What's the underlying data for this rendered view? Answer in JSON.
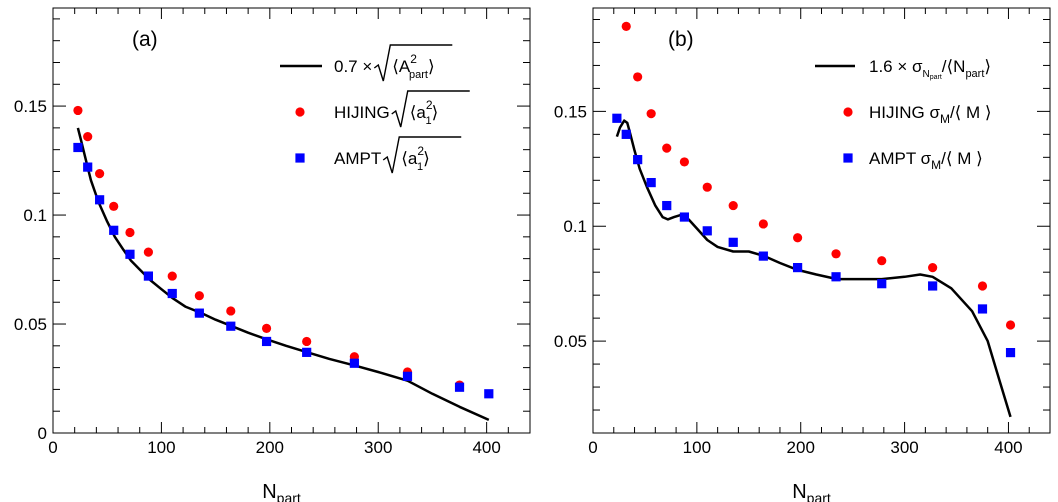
{
  "chart_data": [
    {
      "type": "line",
      "panel_label": "(a)",
      "xlabel": "N",
      "xlabel_sub": "part",
      "xlim": [
        0,
        440
      ],
      "ylim": [
        0,
        0.195
      ],
      "x_ticks": [
        0,
        100,
        200,
        300,
        400
      ],
      "y_ticks": [
        0,
        0.05,
        0.1,
        0.15
      ],
      "x_tick_labels": [
        "0",
        "100",
        "200",
        "300",
        "400"
      ],
      "y_tick_labels": [
        "0",
        "0.05",
        "0.1",
        "0.15"
      ],
      "series": [
        {
          "label": "0.7 ×",
          "label_expr": "⟨A",
          "label_sup": "2",
          "label_sub": "part",
          "label_end": "⟩",
          "kind": "line",
          "color": "#000000",
          "x": [
            23,
            26,
            30,
            35,
            42,
            50,
            57,
            65,
            72,
            80,
            90,
            100,
            110,
            122,
            137,
            150,
            165,
            180,
            197,
            215,
            235,
            255,
            278,
            300,
            327,
            350,
            375,
            402
          ],
          "y": [
            0.14,
            0.134,
            0.126,
            0.116,
            0.106,
            0.097,
            0.09,
            0.084,
            0.079,
            0.075,
            0.07,
            0.066,
            0.062,
            0.058,
            0.055,
            0.052,
            0.049,
            0.046,
            0.043,
            0.04,
            0.037,
            0.034,
            0.031,
            0.028,
            0.024,
            0.018,
            0.012,
            0.006
          ]
        },
        {
          "label": "HIJING",
          "label_expr": "⟨a",
          "label_sup": "2",
          "label_sub": "1",
          "label_end": "⟩",
          "kind": "marker",
          "marker": "circle",
          "color": "#ff0000",
          "x": [
            23,
            32,
            43,
            56,
            71,
            88,
            110,
            135,
            164,
            197,
            234,
            278,
            327,
            375
          ],
          "y": [
            0.148,
            0.136,
            0.119,
            0.104,
            0.092,
            0.083,
            0.072,
            0.063,
            0.056,
            0.048,
            0.042,
            0.035,
            0.028,
            0.022
          ]
        },
        {
          "label": "AMPT",
          "label_expr": "⟨a",
          "label_sup": "2",
          "label_sub": "1",
          "label_end": "⟩",
          "kind": "marker",
          "marker": "square",
          "color": "#0000ff",
          "x": [
            23,
            32,
            43,
            56,
            71,
            88,
            110,
            135,
            164,
            197,
            234,
            278,
            327,
            375,
            402
          ],
          "y": [
            0.131,
            0.122,
            0.107,
            0.093,
            0.082,
            0.072,
            0.064,
            0.055,
            0.049,
            0.042,
            0.037,
            0.032,
            0.026,
            0.021,
            0.018
          ]
        }
      ]
    },
    {
      "type": "line",
      "panel_label": "(b)",
      "xlabel": "N",
      "xlabel_sub": "part",
      "xlim": [
        0,
        440
      ],
      "ylim": [
        0.01,
        0.195
      ],
      "x_ticks": [
        0,
        100,
        200,
        300,
        400
      ],
      "y_ticks": [
        0.05,
        0.1,
        0.15
      ],
      "x_tick_labels": [
        "0",
        "100",
        "200",
        "300",
        "400"
      ],
      "y_tick_labels": [
        "0.05",
        "0.1",
        "0.15"
      ],
      "series": [
        {
          "label": "1.6 × σ",
          "label_sub": "N",
          "label_subsub": "part",
          "label_mid": "/⟨N",
          "label_sub2": "part",
          "label_end": "⟩",
          "kind": "line",
          "color": "#000000",
          "x": [
            23,
            26,
            30,
            33,
            36,
            40,
            45,
            52,
            60,
            67,
            72,
            78,
            85,
            92,
            100,
            110,
            120,
            135,
            150,
            165,
            180,
            197,
            215,
            235,
            255,
            278,
            300,
            315,
            327,
            345,
            365,
            380,
            392,
            402
          ],
          "y": [
            0.139,
            0.143,
            0.146,
            0.145,
            0.14,
            0.133,
            0.125,
            0.117,
            0.109,
            0.104,
            0.103,
            0.104,
            0.105,
            0.103,
            0.099,
            0.094,
            0.091,
            0.089,
            0.089,
            0.087,
            0.084,
            0.081,
            0.079,
            0.077,
            0.077,
            0.077,
            0.078,
            0.079,
            0.078,
            0.073,
            0.063,
            0.05,
            0.032,
            0.017
          ]
        },
        {
          "label": "HIJING σ",
          "label_sub": "M",
          "label_end": "/⟨ M ⟩",
          "kind": "marker",
          "marker": "circle",
          "color": "#ff0000",
          "x": [
            32,
            43,
            56,
            71,
            88,
            110,
            135,
            164,
            197,
            234,
            278,
            327,
            375,
            402
          ],
          "y": [
            0.187,
            0.165,
            0.149,
            0.134,
            0.128,
            0.117,
            0.109,
            0.101,
            0.095,
            0.088,
            0.085,
            0.082,
            0.074,
            0.057
          ]
        },
        {
          "label": "AMPT σ",
          "label_sub": "M",
          "label_end": "/⟨ M ⟩",
          "kind": "marker",
          "marker": "square",
          "color": "#0000ff",
          "x": [
            23,
            32,
            43,
            56,
            71,
            88,
            110,
            135,
            164,
            197,
            234,
            278,
            327,
            375,
            402
          ],
          "y": [
            0.147,
            0.14,
            0.129,
            0.119,
            0.109,
            0.104,
            0.098,
            0.093,
            0.087,
            0.082,
            0.078,
            0.075,
            0.074,
            0.064,
            0.045
          ]
        }
      ]
    }
  ]
}
